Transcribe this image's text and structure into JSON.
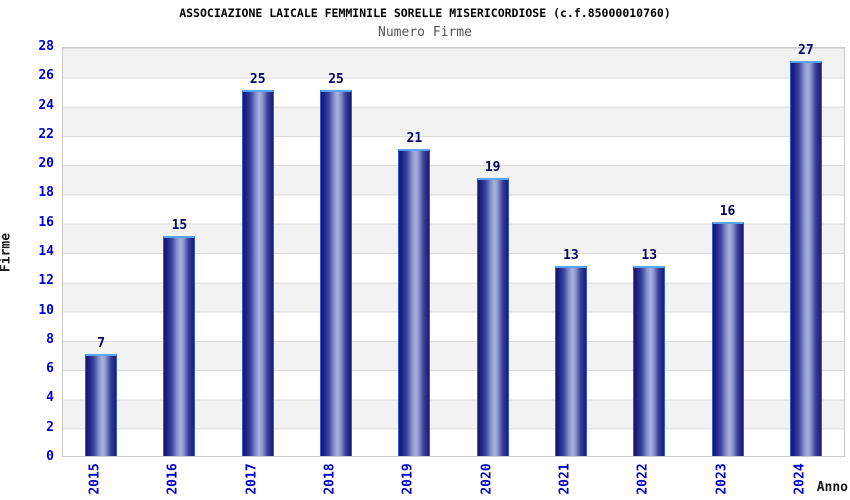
{
  "chart_data": {
    "type": "bar",
    "title": "ASSOCIAZIONE LAICALE FEMMINILE SORELLE MISERICORDIOSE (c.f.85000010760)",
    "subtitle": "Numero Firme",
    "categories": [
      "2015",
      "2016",
      "2017",
      "2018",
      "2019",
      "2020",
      "2021",
      "2022",
      "2023",
      "2024"
    ],
    "values": [
      7,
      15,
      25,
      25,
      21,
      19,
      13,
      13,
      16,
      27
    ],
    "xlabel": "Anno",
    "ylabel": "Firme",
    "ylim": [
      0,
      28
    ],
    "ytick_step": 2,
    "legend": "none",
    "grid": "horizontal-alternating-bands",
    "colors": {
      "bar_dark": "#191970",
      "bar_light": "#aab3de",
      "bar_side_border": "#2e5ed6",
      "bar_top_cap": "#5ca2f2",
      "axis_tick_label": "#0000cc",
      "value_label": "#000066",
      "band_gray": "#f2f2f2",
      "band_white": "#ffffff",
      "gridline": "#dcdcdc",
      "plot_border": "#c9c9c9",
      "title_color": "#000000",
      "subtitle_color": "#555555"
    }
  }
}
